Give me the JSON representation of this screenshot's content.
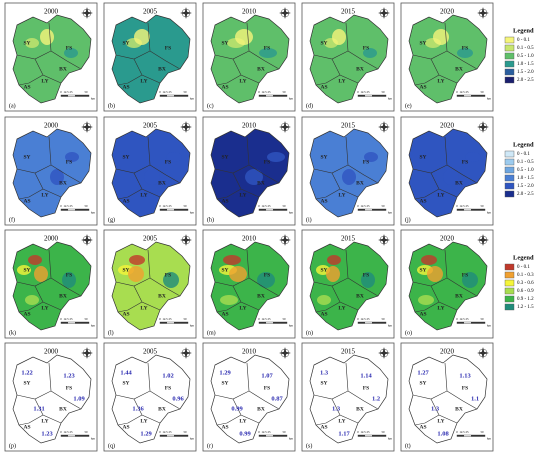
{
  "years": [
    "2000",
    "2005",
    "2010",
    "2015",
    "2020"
  ],
  "panels": [
    [
      "(a)",
      "(b)",
      "(c)",
      "(d)",
      "(e)"
    ],
    [
      "(f)",
      "(g)",
      "(h)",
      "(i)",
      "(j)"
    ],
    [
      "(k)",
      "(l)",
      "(m)",
      "(n)",
      "(o)"
    ],
    [
      "(p)",
      "(q)",
      "(r)",
      "(s)",
      "(t)"
    ]
  ],
  "regions": [
    "SY",
    "FS",
    "BX",
    "LY",
    "AS"
  ],
  "scale_labels": [
    "0",
    "12.5",
    "25",
    "50"
  ],
  "scale_unit": "km",
  "legends": [
    {
      "title": "Legend",
      "items": [
        "0 - 0.1",
        "0.1 - 0.5",
        "0.5 - 1.0",
        "1.0 - 1.5",
        "1.5 - 2.0",
        "2.0 - 2.5"
      ],
      "colors": [
        "#f5f57a",
        "#c8e66e",
        "#5fbf6a",
        "#2a9a8e",
        "#2a5e9e",
        "#1a1f6e"
      ]
    },
    {
      "title": "Legend",
      "items": [
        "0 - 0.1",
        "0.1 - 0.5",
        "0.5 - 1.0",
        "1.0 - 1.5",
        "1.5 - 2.0",
        "2.0 - 2.5"
      ],
      "colors": [
        "#cfe8f7",
        "#9ccbee",
        "#6ea6e0",
        "#4a7fd4",
        "#2f55c0",
        "#1a2e8e"
      ]
    },
    {
      "title": "Legend",
      "items": [
        "0 - 0.1",
        "0.1 - 0.3",
        "0.3 - 0.6",
        "0.6 - 0.9",
        "0.9 - 1.2",
        "1.2 - 1.5"
      ],
      "colors": [
        "#c0392b",
        "#f0a030",
        "#f5f53a",
        "#a8dd50",
        "#3cb44a",
        "#1f8c7a"
      ]
    }
  ],
  "values": [
    [
      1.22,
      1.23,
      1.09,
      1.31,
      1.23
    ],
    [
      1.44,
      1.02,
      0.96,
      1.36,
      1.29
    ],
    [
      1.29,
      1.07,
      0.87,
      0.99,
      0.99
    ],
    [
      1.3,
      1.14,
      1.2,
      1.3,
      1.17
    ],
    [
      1.27,
      1.13,
      1.1,
      1.3,
      1.08
    ]
  ]
}
